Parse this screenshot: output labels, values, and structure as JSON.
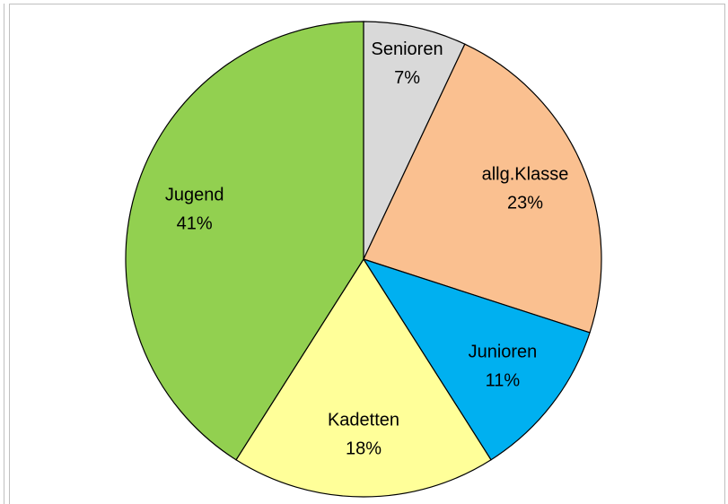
{
  "chart_data": {
    "type": "pie",
    "categories": [
      "Senioren",
      "allg.Klasse",
      "Junioren",
      "Kadetten",
      "Jugend"
    ],
    "values": [
      7,
      23,
      11,
      18,
      41
    ],
    "value_labels": [
      "7%",
      "23%",
      "11%",
      "18%",
      "41%"
    ],
    "colors": [
      "#d9d9d9",
      "#fac090",
      "#00b0f0",
      "#ffff99",
      "#92d050"
    ]
  }
}
